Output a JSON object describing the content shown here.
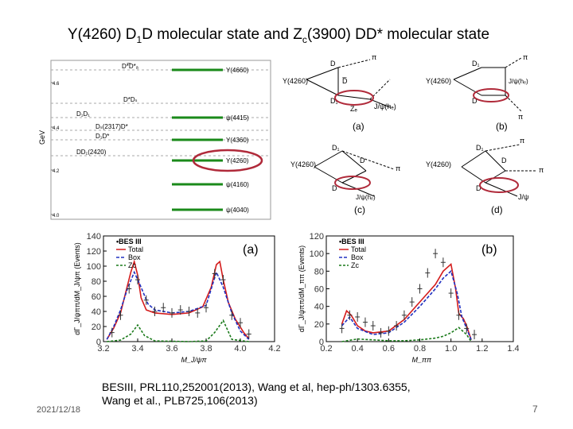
{
  "slide": {
    "title_pre": "Y(4260) D",
    "title_sub1": "1",
    "title_mid": "D molecular state and Z",
    "title_sub2": "c",
    "title_post": "(3900) DD* molecular state",
    "reference_line1": "BESIII, PRL110,252001(2013), Wang et al, hep-ph/1303.6355,",
    "reference_line2": "Wang et al., PLB725,106(2013)",
    "date": "2021/12/18",
    "page_number": "7"
  },
  "level_diagram": {
    "ylabel": "GeV",
    "yticks": [
      "4.6",
      "4.4",
      "4.2",
      "4.0"
    ],
    "thresholds": [
      "D*̅D*ₐ",
      "D*Dₛ",
      "D₁D₁",
      "Dₛ(2317)D*",
      "D₁D*",
      "DD₁(2420)"
    ],
    "states": [
      "Y(4660)",
      "ψ(4415)",
      "Y(4360)",
      "Y(4260)",
      "ψ(4160)",
      "ψ(4040)"
    ]
  },
  "feynman": {
    "panels": [
      {
        "label": "(a)",
        "initial": "Y(4260)",
        "left_top": "D",
        "left_bot": "D₁",
        "right_top": "π",
        "right_bot": "J/ψ(hₑ)",
        "mid": "D̅",
        "zc": "Zₑ"
      },
      {
        "label": "(b)",
        "initial": "Y(4260)",
        "left_top": "D₁",
        "left_bot": "D",
        "right_top": "π",
        "right_bot": "π",
        "mid": "D",
        "out": "J/ψ(hₑ)"
      },
      {
        "label": "(c)",
        "initial": "Y(4260)",
        "left_top": "D₁",
        "left_bot": "D",
        "right_top": "π",
        "right_bot": "J/ψ(hₑ)",
        "mid": "D"
      },
      {
        "label": "(d)",
        "initial": "Y(4260)",
        "left_top": "D₁",
        "left_bot": "D",
        "right_top": "π",
        "right_bot": "J/ψ",
        "mid": "D",
        "extra": "π"
      }
    ]
  },
  "colors": {
    "green_line": "#1a8a1a",
    "highlight_ellipse": "#b02a3a",
    "total": "#d41c1c",
    "box": "#2030c0",
    "zc": "#1a7a1a",
    "data": "#333333"
  },
  "chart_data": [
    {
      "type": "line",
      "panel_label": "(a)",
      "xlabel": "M_J/ψπ",
      "ylabel": "dΓ_J/ψππ/dM_J/ψπ (Events)",
      "xlim": [
        3.2,
        4.2
      ],
      "ylim": [
        0,
        140
      ],
      "xticks": [
        "3.2",
        "3.4",
        "3.6",
        "3.8",
        "4.0",
        "4.2"
      ],
      "yticks": [
        "0",
        "20",
        "40",
        "60",
        "80",
        "100",
        "120",
        "140"
      ],
      "legend": [
        "BES III",
        "Total",
        "Box",
        "Zc"
      ],
      "experiment_label": "BES III",
      "series": [
        {
          "name": "Total",
          "x": [
            3.22,
            3.26,
            3.3,
            3.33,
            3.36,
            3.38,
            3.4,
            3.42,
            3.45,
            3.5,
            3.6,
            3.7,
            3.78,
            3.83,
            3.86,
            3.88,
            3.9,
            3.93,
            3.97,
            4.02,
            4.05
          ],
          "y": [
            3,
            18,
            38,
            65,
            92,
            106,
            88,
            58,
            42,
            38,
            36,
            38,
            46,
            72,
            102,
            106,
            82,
            52,
            30,
            12,
            4
          ]
        },
        {
          "name": "Box",
          "x": [
            3.22,
            3.26,
            3.3,
            3.34,
            3.38,
            3.42,
            3.46,
            3.5,
            3.6,
            3.7,
            3.8,
            3.86,
            3.9,
            3.95,
            4.0,
            4.05
          ],
          "y": [
            3,
            20,
            42,
            70,
            92,
            72,
            50,
            42,
            38,
            40,
            48,
            92,
            72,
            38,
            14,
            3
          ]
        },
        {
          "name": "Zc",
          "x": [
            3.22,
            3.3,
            3.36,
            3.4,
            3.44,
            3.5,
            3.7,
            3.8,
            3.85,
            3.9,
            3.95,
            4.05
          ],
          "y": [
            0,
            2,
            10,
            22,
            8,
            1,
            0,
            1,
            12,
            28,
            3,
            0
          ]
        },
        {
          "name": "BES III",
          "x": [
            3.25,
            3.3,
            3.35,
            3.4,
            3.45,
            3.5,
            3.55,
            3.6,
            3.65,
            3.7,
            3.75,
            3.8,
            3.85,
            3.9,
            3.95,
            4.0,
            4.05
          ],
          "y": [
            12,
            35,
            70,
            82,
            55,
            40,
            45,
            38,
            42,
            40,
            38,
            45,
            90,
            82,
            35,
            25,
            10
          ]
        }
      ]
    },
    {
      "type": "line",
      "panel_label": "(b)",
      "xlabel": "M_ππ",
      "ylabel": "dΓ_J/ψππ/dM_ππ (Events)",
      "xlim": [
        0.2,
        1.4
      ],
      "ylim": [
        0,
        120
      ],
      "xticks": [
        "0.2",
        "0.4",
        "0.6",
        "0.8",
        "1.0",
        "1.2",
        "1.4"
      ],
      "yticks": [
        "0",
        "20",
        "40",
        "60",
        "80",
        "100",
        "120"
      ],
      "legend": [
        "BES III",
        "Total",
        "Box",
        "Zc"
      ],
      "experiment_label": "BES III",
      "series": [
        {
          "name": "Total",
          "x": [
            0.3,
            0.33,
            0.36,
            0.4,
            0.45,
            0.5,
            0.6,
            0.7,
            0.8,
            0.9,
            0.95,
            1.0,
            1.03,
            1.05,
            1.08,
            1.1,
            1.13
          ],
          "y": [
            20,
            35,
            30,
            18,
            12,
            10,
            12,
            25,
            45,
            65,
            80,
            88,
            60,
            32,
            26,
            18,
            2
          ]
        },
        {
          "name": "Box",
          "x": [
            0.3,
            0.35,
            0.4,
            0.5,
            0.6,
            0.7,
            0.8,
            0.9,
            0.95,
            1.0,
            1.04,
            1.07,
            1.1,
            1.13
          ],
          "y": [
            18,
            28,
            15,
            8,
            10,
            22,
            40,
            60,
            72,
            80,
            55,
            28,
            15,
            2
          ]
        },
        {
          "name": "Zc",
          "x": [
            0.3,
            0.4,
            0.5,
            0.6,
            0.7,
            0.8,
            0.9,
            0.95,
            1.0,
            1.05,
            1.1,
            1.13
          ],
          "y": [
            0,
            3,
            2,
            1,
            1,
            2,
            4,
            6,
            10,
            16,
            8,
            0
          ]
        },
        {
          "name": "BES III",
          "x": [
            0.3,
            0.35,
            0.4,
            0.45,
            0.5,
            0.55,
            0.6,
            0.65,
            0.7,
            0.75,
            0.8,
            0.85,
            0.9,
            0.95,
            1.0,
            1.05,
            1.1,
            1.15
          ],
          "y": [
            15,
            30,
            28,
            22,
            18,
            10,
            12,
            18,
            30,
            45,
            60,
            78,
            100,
            90,
            55,
            30,
            15,
            8
          ]
        }
      ]
    }
  ]
}
